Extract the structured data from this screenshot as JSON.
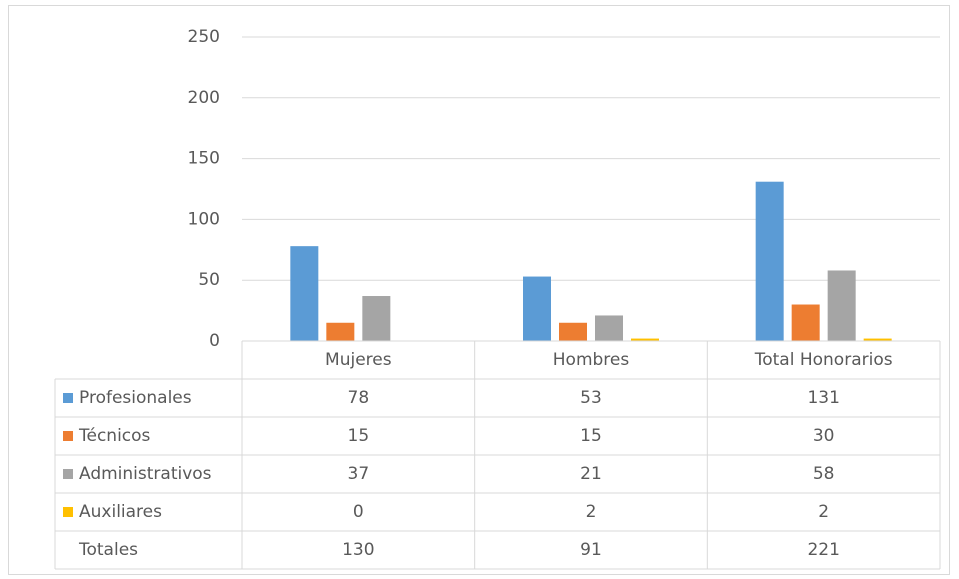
{
  "chart_data": {
    "type": "bar",
    "categories": [
      "Mujeres",
      "Hombres",
      "Total Honorarios"
    ],
    "series": [
      {
        "name": "Profesionales",
        "color": "#5b9bd5",
        "values": [
          78,
          53,
          131
        ]
      },
      {
        "name": "Técnicos",
        "color": "#ed7d31",
        "values": [
          15,
          15,
          30
        ]
      },
      {
        "name": "Administrativos",
        "color": "#a5a5a5",
        "values": [
          37,
          21,
          58
        ]
      },
      {
        "name": "Auxiliares",
        "color": "#ffc000",
        "values": [
          0,
          2,
          2
        ]
      }
    ],
    "totals": {
      "name": "Totales",
      "values": [
        130,
        91,
        221
      ]
    },
    "ylim": [
      0,
      250
    ],
    "yticks": [
      0,
      50,
      100,
      150,
      200,
      250
    ],
    "grid": true
  }
}
